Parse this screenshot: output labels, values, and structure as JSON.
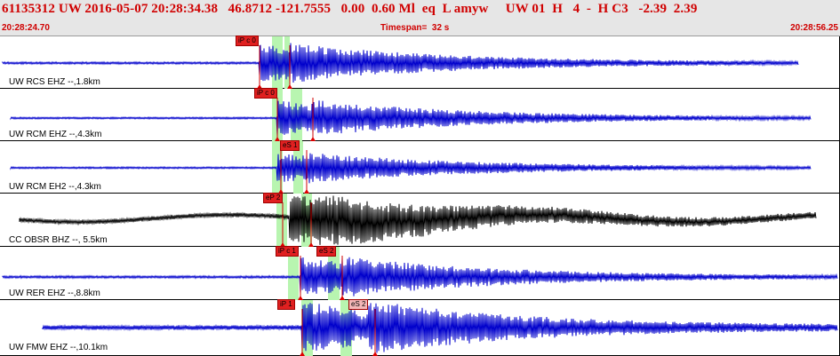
{
  "header": {
    "title": "61135312 UW 2016-05-07 20:28:34.38   46.8712 -121.7555   0.00  0.60 Ml  eq  L amyw     UW 01  H   4  -  H C3   -2.39  2.39",
    "start_time": "20:28:24.70",
    "timespan": "Timespan=  32 s",
    "end_time": "20:28:56.25"
  },
  "colors": {
    "header_text": "#d00000",
    "trace_blue": "#0000cc",
    "trace_black": "#000000",
    "window_green": "#b8f5b0",
    "pick_red": "#e02020",
    "pick_pink": "#f4b8b8"
  },
  "traces": [
    {
      "label": "UW RCS EHZ --,1.8km",
      "color": "blue",
      "picks": [
        {
          "text": "iP c 0",
          "style": "red"
        }
      ]
    },
    {
      "label": "UW RCM EHZ --,4.3km",
      "color": "blue",
      "picks": [
        {
          "text": "iP c 0",
          "style": "red"
        }
      ]
    },
    {
      "label": "UW RCM EH2 --,4.3km",
      "color": "blue",
      "picks": [
        {
          "text": "eS 1",
          "style": "red"
        }
      ]
    },
    {
      "label": "CC OBSR BHZ --, 5.5km",
      "color": "black",
      "picks": [
        {
          "text": "eP 2",
          "style": "red"
        }
      ]
    },
    {
      "label": "UW RER EHZ --,8.8km",
      "color": "blue",
      "picks": [
        {
          "text": "iP c 1",
          "style": "red"
        },
        {
          "text": "eS 2",
          "style": "red"
        }
      ]
    },
    {
      "label": "UW FMW EHZ --,10.1km",
      "color": "blue",
      "picks": [
        {
          "text": "iP 1",
          "style": "red"
        },
        {
          "text": "eS 2",
          "style": "pink"
        }
      ]
    }
  ]
}
